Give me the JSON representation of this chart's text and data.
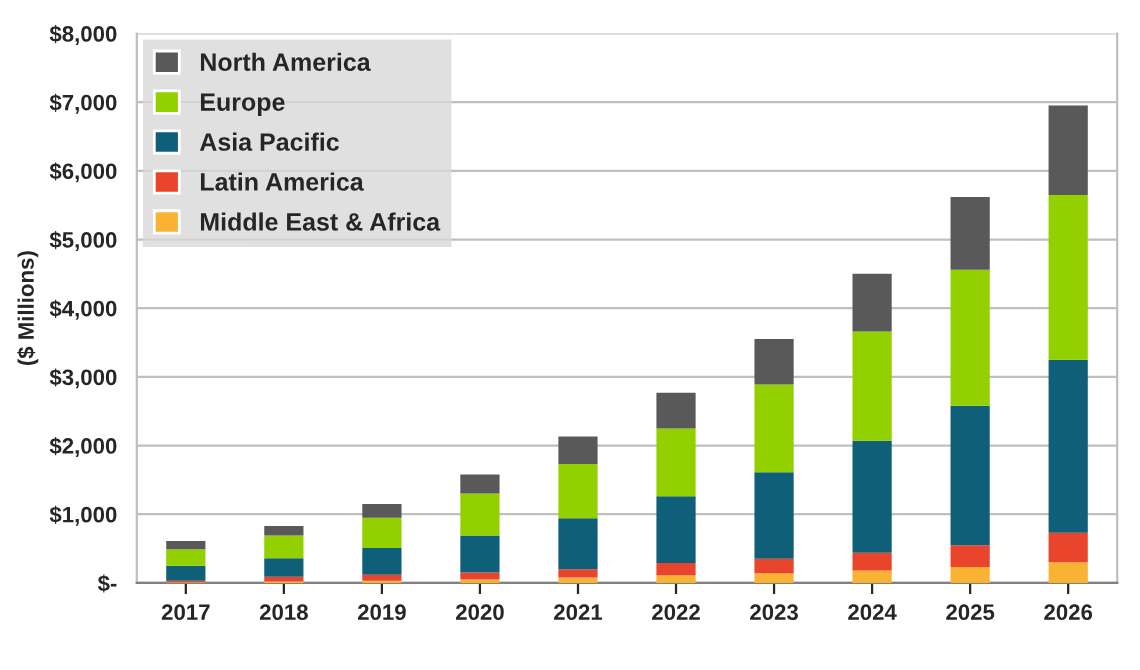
{
  "chart_data": {
    "type": "bar",
    "stacked": true,
    "ylabel": "($ Millions)",
    "categories": [
      "2017",
      "2018",
      "2019",
      "2020",
      "2021",
      "2022",
      "2023",
      "2024",
      "2025",
      "2026"
    ],
    "series": [
      {
        "name": "Middle East & Africa",
        "color": "#f9b233",
        "values": [
          10,
          20,
          30,
          50,
          80,
          110,
          140,
          180,
          230,
          300
        ]
      },
      {
        "name": "Latin America",
        "color": "#e8452c",
        "values": [
          20,
          70,
          90,
          100,
          120,
          180,
          210,
          260,
          320,
          430
        ]
      },
      {
        "name": "Asia Pacific",
        "color": "#0f5f78",
        "values": [
          220,
          270,
          390,
          540,
          740,
          970,
          1260,
          1630,
          2030,
          2520
        ]
      },
      {
        "name": "Europe",
        "color": "#92d000",
        "values": [
          240,
          330,
          440,
          610,
          790,
          990,
          1280,
          1590,
          1980,
          2400
        ]
      },
      {
        "name": "North America",
        "color": "#595959",
        "values": [
          120,
          140,
          200,
          280,
          400,
          520,
          660,
          840,
          1060,
          1300
        ]
      }
    ],
    "ylim": [
      0,
      8000
    ],
    "yticks": [
      {
        "value": 0,
        "label": "$-"
      },
      {
        "value": 1000,
        "label": "$1,000"
      },
      {
        "value": 2000,
        "label": "$2,000"
      },
      {
        "value": 3000,
        "label": "$3,000"
      },
      {
        "value": 4000,
        "label": "$4,000"
      },
      {
        "value": 5000,
        "label": "$5,000"
      },
      {
        "value": 6000,
        "label": "$6,000"
      },
      {
        "value": 7000,
        "label": "$7,000"
      },
      {
        "value": 8000,
        "label": "$8,000"
      }
    ],
    "grid": "y",
    "legend": "top left"
  }
}
